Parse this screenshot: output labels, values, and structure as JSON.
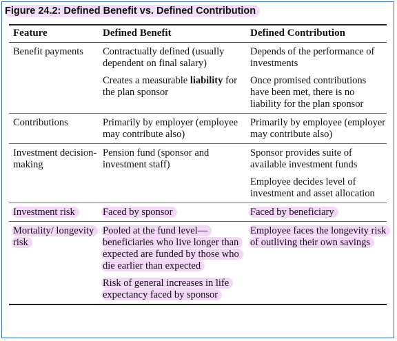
{
  "figure_title": "Figure 24.2:  Defined Benefit vs. Defined Contribution",
  "headers": [
    "Feature",
    "Defined Benefit",
    "Defined Contribution"
  ],
  "rows": [
    {
      "feature": "Benefit payments",
      "db": [
        "Contractually defined (usually dependent on final salary)",
        "Creates a measurable liability for the plan sponsor"
      ],
      "dc": [
        "Depends of the performance of investments",
        "Once promised contributions have been met, there is no liability for the plan sponsor"
      ]
    },
    {
      "feature": "Contributions",
      "db": [
        "Primarily by employer (employee may contribute also)"
      ],
      "dc": [
        "Primarily by employee (employer may contribute also)"
      ]
    },
    {
      "feature": "Investment decision-making",
      "db": [
        "Pension fund (sponsor and investment staff)"
      ],
      "dc": [
        "Sponsor provides suite of available investment funds",
        "Employee decides level of investment and asset allocation"
      ]
    },
    {
      "feature": "Investment risk",
      "db": [
        "Faced by sponsor"
      ],
      "dc": [
        "Faced by beneficiary"
      ]
    },
    {
      "feature": "Mortality/ longevity risk",
      "db": [
        "Pooled at the fund level—beneficiaries who live longer than expected are funded by those who die earlier than expected",
        "Risk of general increases in life expectancy faced by sponsor"
      ],
      "dc": [
        "Employee faces the longevity risk of outliving their own savings"
      ]
    }
  ],
  "db_liability_bold": {
    "before": "Creates a measurable ",
    "bold": "liability",
    "after": " for the plan sponsor"
  },
  "colors": {
    "highlight": "#f2d7f7",
    "frame": "#2f6fd1"
  }
}
